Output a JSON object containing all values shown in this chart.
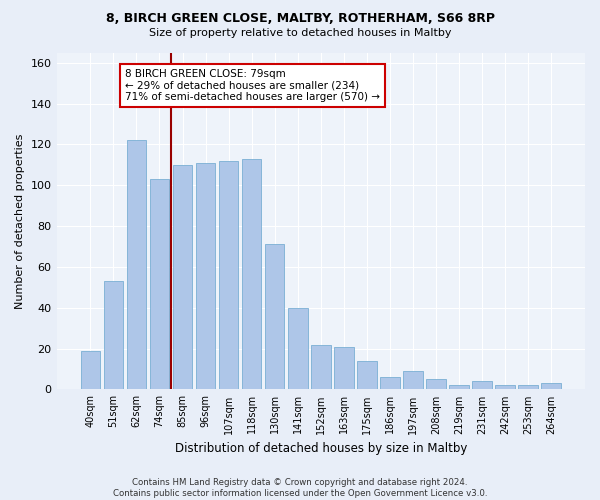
{
  "title1": "8, BIRCH GREEN CLOSE, MALTBY, ROTHERHAM, S66 8RP",
  "title2": "Size of property relative to detached houses in Maltby",
  "xlabel": "Distribution of detached houses by size in Maltby",
  "ylabel": "Number of detached properties",
  "categories": [
    "40sqm",
    "51sqm",
    "62sqm",
    "74sqm",
    "85sqm",
    "96sqm",
    "107sqm",
    "118sqm",
    "130sqm",
    "141sqm",
    "152sqm",
    "163sqm",
    "175sqm",
    "186sqm",
    "197sqm",
    "208sqm",
    "219sqm",
    "231sqm",
    "242sqm",
    "253sqm",
    "264sqm"
  ],
  "values": [
    19,
    53,
    122,
    103,
    110,
    111,
    112,
    113,
    71,
    40,
    22,
    21,
    14,
    6,
    9,
    5,
    2,
    4,
    2,
    2,
    3
  ],
  "bar_color": "#aec6e8",
  "bar_edgecolor": "#7aafd4",
  "vline_x": 3.5,
  "vline_color": "#990000",
  "annotation_text": "8 BIRCH GREEN CLOSE: 79sqm\n← 29% of detached houses are smaller (234)\n71% of semi-detached houses are larger (570) →",
  "annotation_box_color": "#ffffff",
  "annotation_box_edgecolor": "#cc0000",
  "ylim": [
    0,
    165
  ],
  "yticks": [
    0,
    20,
    40,
    60,
    80,
    100,
    120,
    140,
    160
  ],
  "footer": "Contains HM Land Registry data © Crown copyright and database right 2024.\nContains public sector information licensed under the Open Government Licence v3.0.",
  "bg_color": "#e8eef8",
  "plot_bg_color": "#eef3fa"
}
